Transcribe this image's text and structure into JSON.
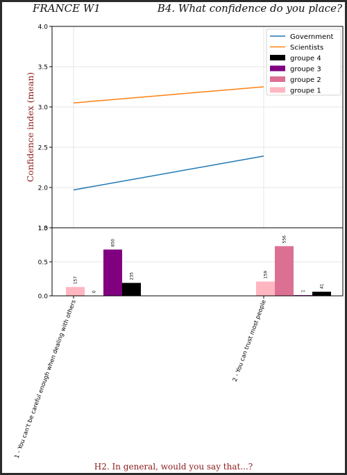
{
  "header": {
    "left_title": "FRANCE W1",
    "right_title": "B4. What confidence do you place?"
  },
  "footer": {
    "question": "H2. In general, would you say that...?"
  },
  "colors": {
    "government": "#1f77b4",
    "scientists": "#ff7f0e",
    "groupe4": "#000000",
    "groupe3": "#800080",
    "groupe2": "#db7093",
    "groupe1": "#ffb6c1",
    "ylabel": "#8b1a1a"
  },
  "chart_data": [
    {
      "type": "line",
      "ylabel": "Confidence index (mean)",
      "ylim": [
        1.5,
        4.0
      ],
      "yticks": [
        "1.5",
        "2.0",
        "2.5",
        "3.0",
        "3.5",
        "4.0"
      ],
      "categories": [
        "1 - You can't be careful enough when dealing with others",
        "2 - You can trust most people"
      ],
      "grid": true,
      "legend": "top-right",
      "series": [
        {
          "name": "Government",
          "values": [
            1.97,
            2.39
          ]
        },
        {
          "name": "Scientists",
          "values": [
            3.05,
            3.25
          ]
        }
      ]
    },
    {
      "type": "bar",
      "ylim": [
        0,
        1.0
      ],
      "yticks": [
        "0.0",
        "0.5",
        "1.0"
      ],
      "categories": [
        "1 - You can't be careful enough when dealing with others",
        "2 - You can trust most people"
      ],
      "series": [
        {
          "name": "groupe 1",
          "values": [
            0.13,
            0.21
          ],
          "labels": [
            "157",
            "159"
          ]
        },
        {
          "name": "groupe 2",
          "values": [
            0.0,
            0.73
          ],
          "labels": [
            "0",
            "556"
          ]
        },
        {
          "name": "groupe 3",
          "values": [
            0.68,
            0.01
          ],
          "labels": [
            "850",
            "1"
          ]
        },
        {
          "name": "groupe 4",
          "values": [
            0.19,
            0.06
          ],
          "labels": [
            "235",
            "41"
          ]
        }
      ]
    }
  ]
}
